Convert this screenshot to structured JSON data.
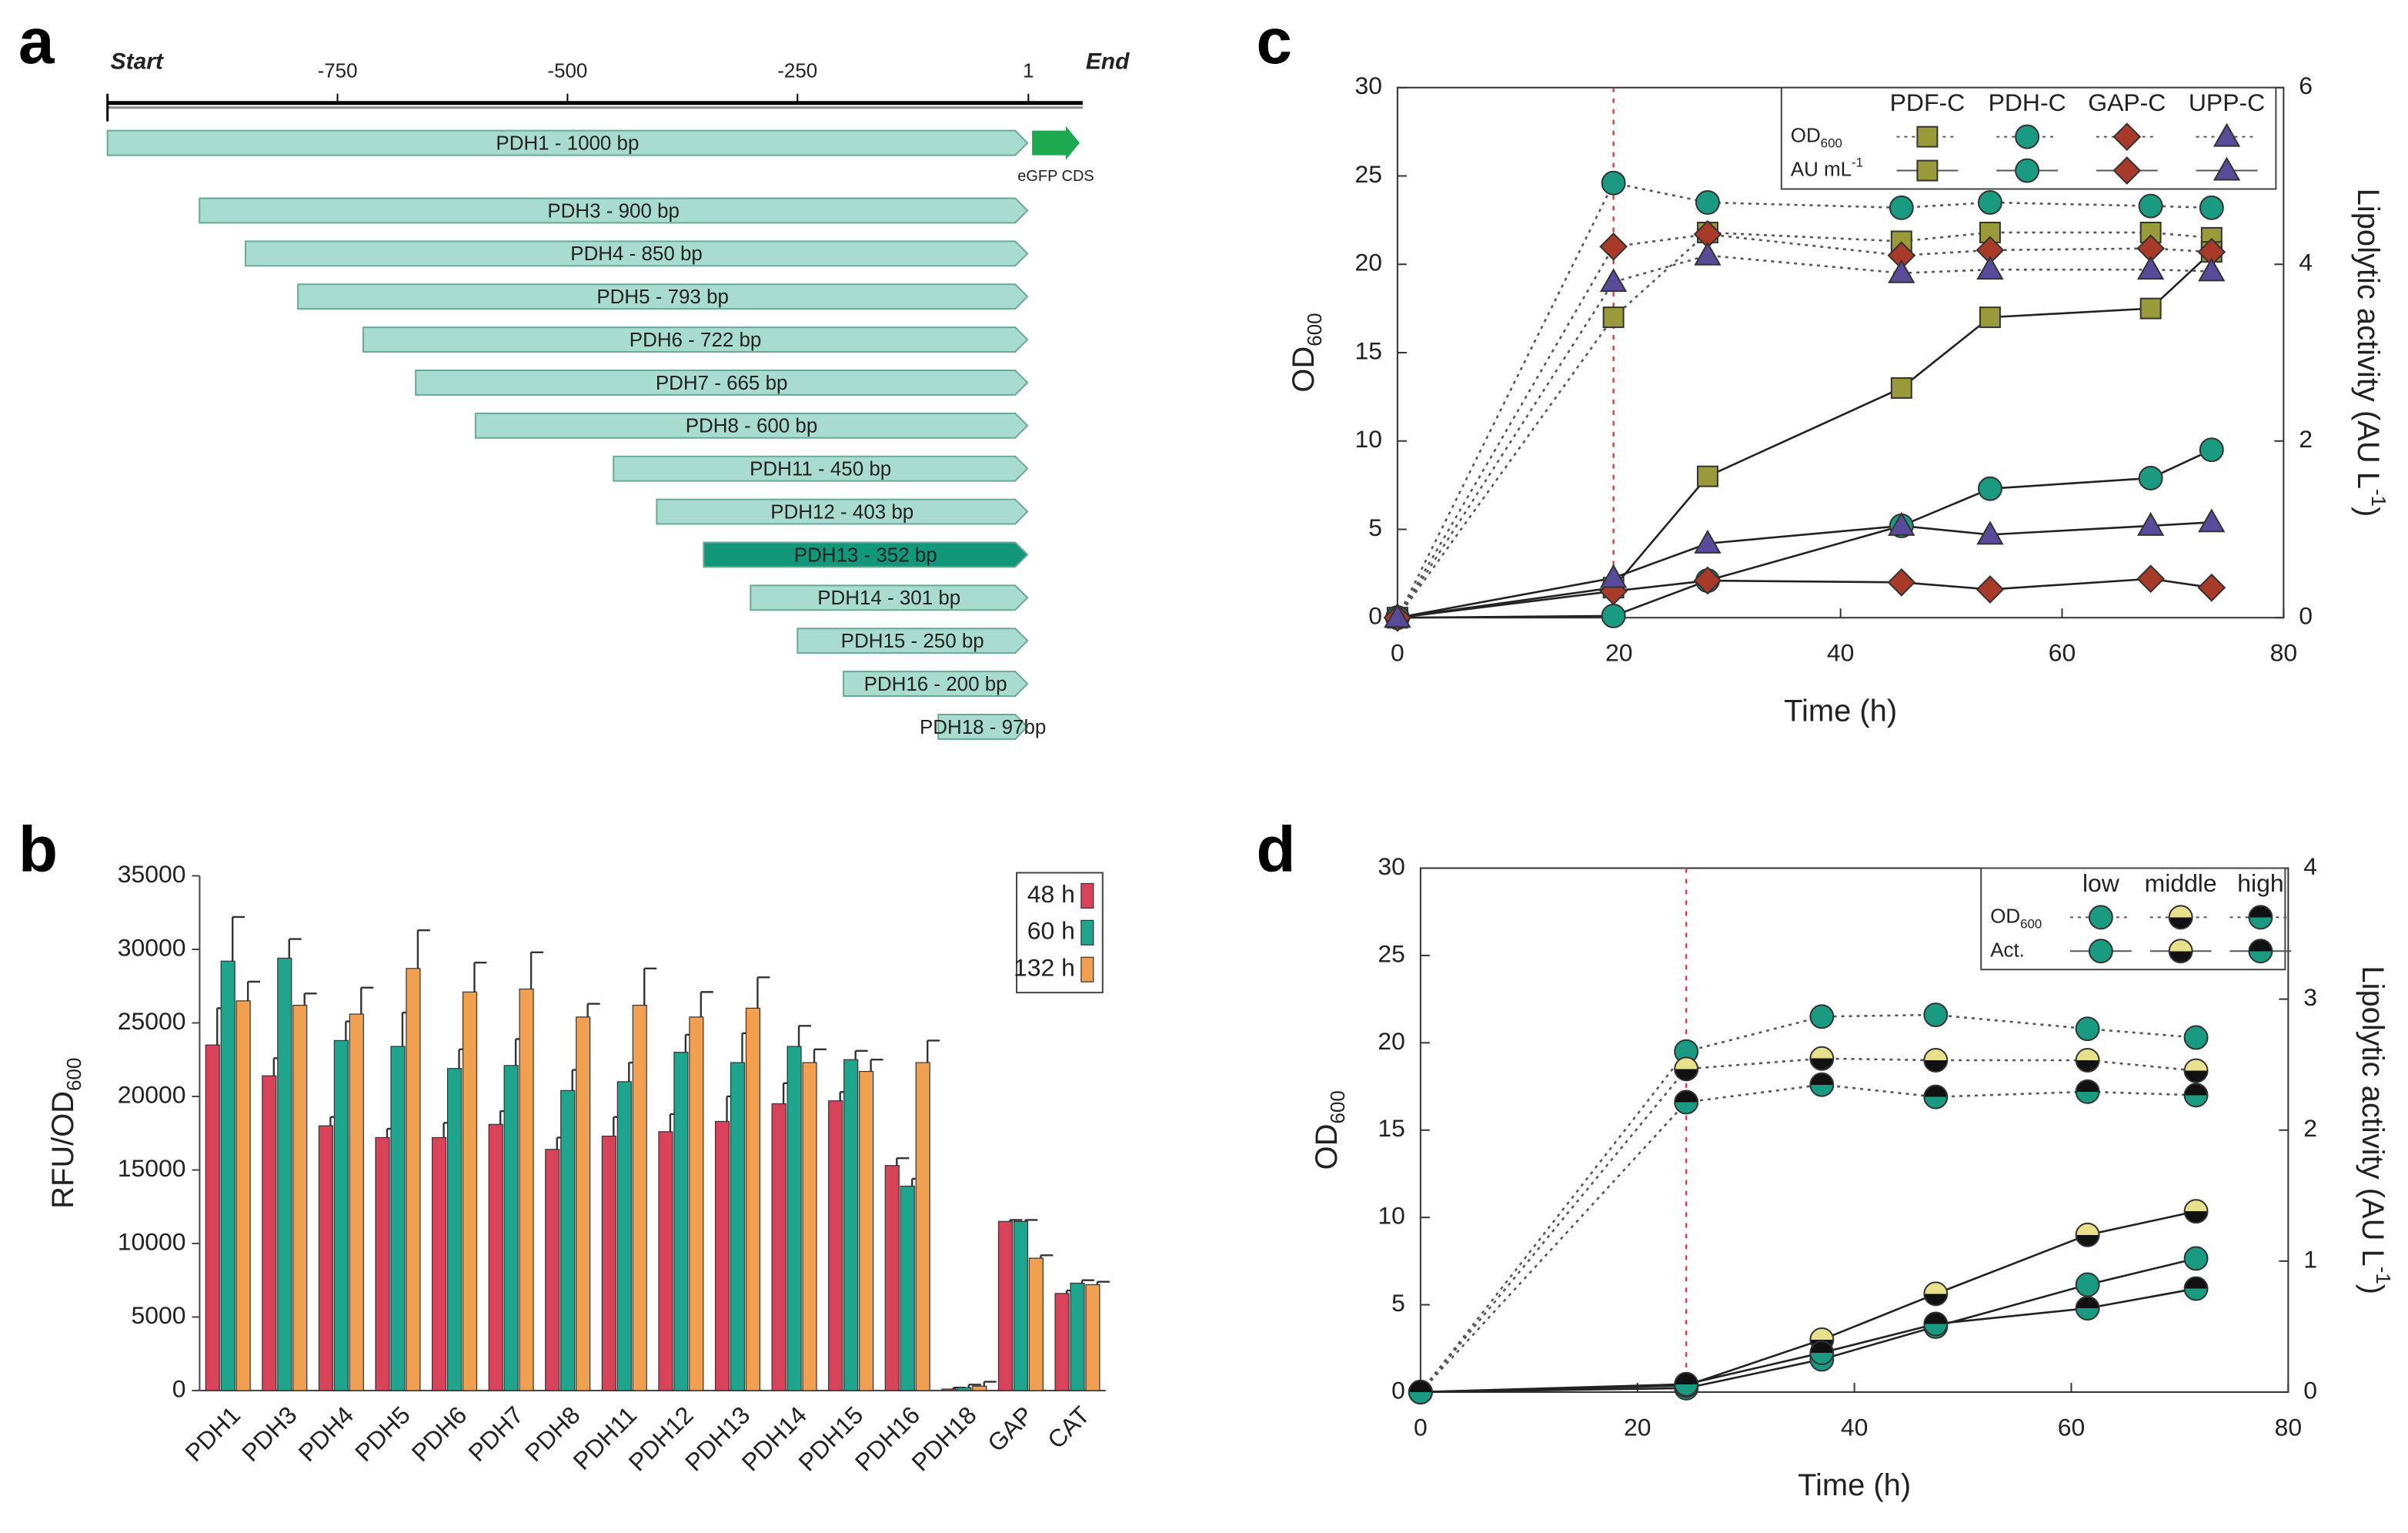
{
  "chart_data": [
    {
      "type": "fragments",
      "panel": "a",
      "start_label": "Start",
      "end_label": "End",
      "xlim": [
        -1000,
        60
      ],
      "xticks": [
        -750,
        -500,
        -250,
        1
      ],
      "categories": [
        "PDH1 - 1000 bp",
        "PDH3 - 900 bp",
        "PDH4 - 850 bp",
        "PDH5 - 793 bp",
        "PDH6 - 722 bp",
        "PDH7 - 665 bp",
        "PDH8 - 600 bp",
        "PDH11 - 450 bp",
        "PDH12 - 403 bp",
        "PDH13 - 352 bp",
        "PDH14 - 301 bp",
        "PDH15 - 250 bp",
        "PDH16 - 200 bp",
        "PDH18 - 97bp"
      ],
      "values": [
        1000,
        900,
        850,
        793,
        722,
        665,
        600,
        450,
        403,
        352,
        301,
        250,
        200,
        97
      ],
      "colors": [
        "#a8dccf",
        "#a8dccf",
        "#a8dccf",
        "#a8dccf",
        "#a8dccf",
        "#a8dccf",
        "#a8dccf",
        "#a8dccf",
        "#a8dccf",
        "#13977a",
        "#a8dccf",
        "#a8dccf",
        "#a8dccf",
        "#a8dccf"
      ],
      "gene": {
        "label": "eGFP CDS",
        "color": "#1ea84f"
      }
    },
    {
      "type": "bar",
      "panel": "b",
      "y_label": [
        "RFU/OD",
        "600"
      ],
      "categories": [
        "PDH1",
        "PDH3",
        "PDH4",
        "PDH5",
        "PDH6",
        "PDH7",
        "PDH8",
        "PDH11",
        "PDH12",
        "PDH13",
        "PDH14",
        "PDH15",
        "PDH16",
        "PDH18",
        "GAP",
        "CAT"
      ],
      "series": [
        {
          "name": "48 h",
          "color": "#d9435a",
          "values": [
            23500,
            21400,
            18000,
            17200,
            17200,
            18100,
            16400,
            17300,
            17600,
            18300,
            19500,
            19700,
            15300,
            100,
            11500,
            6600
          ],
          "errors": [
            2500,
            1200,
            600,
            600,
            1000,
            900,
            800,
            1300,
            1200,
            1700,
            1400,
            600,
            500,
            100,
            100,
            200
          ]
        },
        {
          "name": "60 h",
          "color": "#1fa58e",
          "values": [
            29200,
            29400,
            23800,
            23400,
            21900,
            22100,
            20400,
            21000,
            23000,
            22300,
            23400,
            22500,
            13900,
            200,
            11500,
            7300
          ],
          "errors": [
            3000,
            1300,
            1300,
            2300,
            1300,
            1800,
            1400,
            1300,
            1200,
            2000,
            1400,
            600,
            500,
            200,
            100,
            200
          ]
        },
        {
          "name": "132 h",
          "color": "#f0a050",
          "values": [
            26500,
            26200,
            25600,
            28700,
            27100,
            27300,
            25400,
            26200,
            25400,
            26000,
            22300,
            21700,
            22300,
            300,
            9000,
            7200
          ],
          "errors": [
            1300,
            800,
            1800,
            2600,
            2000,
            2500,
            900,
            2500,
            1700,
            2100,
            900,
            800,
            1500,
            300,
            200,
            200
          ]
        }
      ],
      "ylim": [
        0,
        35000
      ],
      "yticks": [
        0,
        5000,
        10000,
        15000,
        20000,
        25000,
        30000,
        35000
      ],
      "legend": "top-right"
    },
    {
      "type": "line",
      "panel": "c",
      "x_label": "Time (h)",
      "y_label": [
        "OD",
        "600"
      ],
      "y2_label": [
        "Lipolytic activity (AU L",
        "-1",
        ")"
      ],
      "x": [
        0,
        19.5,
        28,
        45.5,
        53.5,
        68,
        73.5
      ],
      "xlim": [
        0,
        80
      ],
      "xticks": [
        0,
        20,
        40,
        60,
        80
      ],
      "ylim": [
        0,
        30
      ],
      "yticks": [
        0,
        5,
        10,
        15,
        20,
        25,
        30
      ],
      "y2lim": [
        0,
        6
      ],
      "y2ticks": [
        0,
        2,
        4,
        6
      ],
      "vline": 19.5,
      "vline_color": "#d04040",
      "legend_rows": [
        [
          "OD",
          "600"
        ],
        [
          "AU mL",
          "-1"
        ]
      ],
      "series": [
        {
          "name": "PDF-C",
          "color": "#9a9a3a",
          "marker": "square",
          "values": [
            0,
            17,
            21.8,
            21.3,
            21.8,
            21.8,
            21.5
          ],
          "values_y2": [
            0,
            0.34,
            1.6,
            2.6,
            3.4,
            3.5,
            4.14
          ]
        },
        {
          "name": "PDH-C",
          "color": "#1a9a80",
          "marker": "circle",
          "values": [
            0,
            24.6,
            23.5,
            23.2,
            23.5,
            23.3,
            23.2
          ],
          "values_y2": [
            0,
            0.02,
            0.42,
            1.04,
            1.46,
            1.58,
            1.9
          ]
        },
        {
          "name": "GAP-C",
          "color": "#a83a2a",
          "marker": "diamond",
          "values": [
            0,
            21,
            21.7,
            20.5,
            20.8,
            20.9,
            20.7
          ],
          "values_y2": [
            0,
            0.3,
            0.42,
            0.4,
            0.32,
            0.44,
            0.34
          ]
        },
        {
          "name": "UPP-C",
          "color": "#5a4a9a",
          "marker": "triangle",
          "values": [
            0,
            19,
            20.5,
            19.5,
            19.7,
            19.7,
            19.6
          ],
          "values_y2": [
            0,
            0.45,
            0.84,
            1.04,
            0.94,
            1.04,
            1.08
          ]
        }
      ]
    },
    {
      "type": "line",
      "panel": "d",
      "x_label": "Time (h)",
      "y_label": [
        "OD",
        "600"
      ],
      "y2_label": [
        "Lipolytic activity (AU L",
        "-1",
        ")"
      ],
      "x": [
        0,
        24.5,
        37,
        47.5,
        61.5,
        71.5
      ],
      "xlim": [
        0,
        80
      ],
      "xticks": [
        0,
        20,
        40,
        60,
        80
      ],
      "ylim": [
        0,
        30
      ],
      "yticks": [
        0,
        5,
        10,
        15,
        20,
        25,
        30
      ],
      "y2lim": [
        0,
        4
      ],
      "y2ticks": [
        0,
        1,
        2,
        3,
        4
      ],
      "vline": 24.5,
      "vline_color": "#d04040",
      "legend_rows": [
        [
          "OD",
          "600"
        ],
        [
          "Act."
        ]
      ],
      "series": [
        {
          "name": "low",
          "color": "#1a9a80",
          "marker": "circle",
          "values": [
            0,
            19.5,
            21.5,
            21.6,
            20.8,
            20.3
          ],
          "values_y2": [
            0,
            0.03,
            0.25,
            0.5,
            0.82,
            1.02
          ]
        },
        {
          "name": "middle",
          "color": "#e8e08a",
          "color2": "#111111",
          "marker": "circle",
          "values": [
            0,
            18.5,
            19.1,
            19,
            19,
            18.4
          ],
          "values_y2": [
            0,
            0.05,
            0.4,
            0.75,
            1.2,
            1.38
          ]
        },
        {
          "name": "high",
          "color": "#111111",
          "color2": "#1a9a80",
          "marker": "circle",
          "values": [
            0,
            16.6,
            17.6,
            16.9,
            17.2,
            17
          ],
          "values_y2": [
            0,
            0.06,
            0.3,
            0.52,
            0.64,
            0.79
          ]
        }
      ]
    }
  ]
}
